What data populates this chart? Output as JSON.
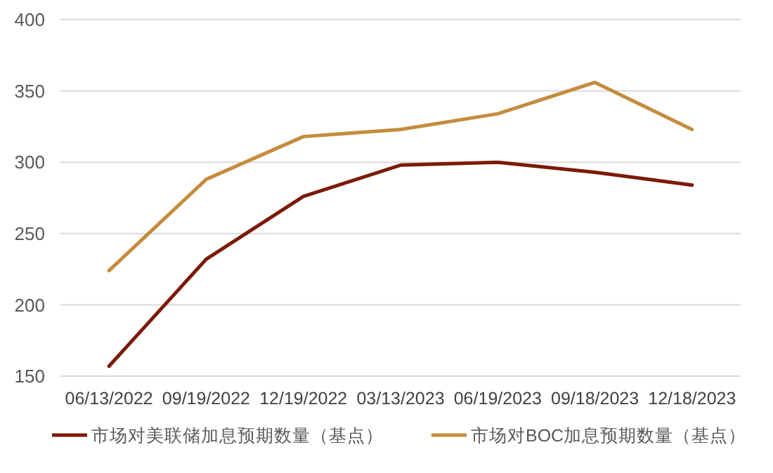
{
  "chart_data": {
    "type": "line",
    "categories": [
      "06/13/2022",
      "09/19/2022",
      "12/19/2022",
      "03/13/2023",
      "06/19/2023",
      "09/18/2023",
      "12/18/2023"
    ],
    "series": [
      {
        "name": "市场对美联储加息预期数量（基点）",
        "color": "#7b1a06",
        "values": [
          157,
          232,
          276,
          298,
          300,
          293,
          284
        ]
      },
      {
        "name": "市场对BOC加息预期数量（基点）",
        "color": "#c48c3e",
        "values": [
          224,
          288,
          318,
          323,
          334,
          356,
          323
        ]
      }
    ],
    "ylim": [
      150,
      400
    ],
    "yticks": [
      150,
      200,
      250,
      300,
      350,
      400
    ],
    "grid": "y",
    "legend": "bottom",
    "marker": "none",
    "line_style": "solid"
  }
}
